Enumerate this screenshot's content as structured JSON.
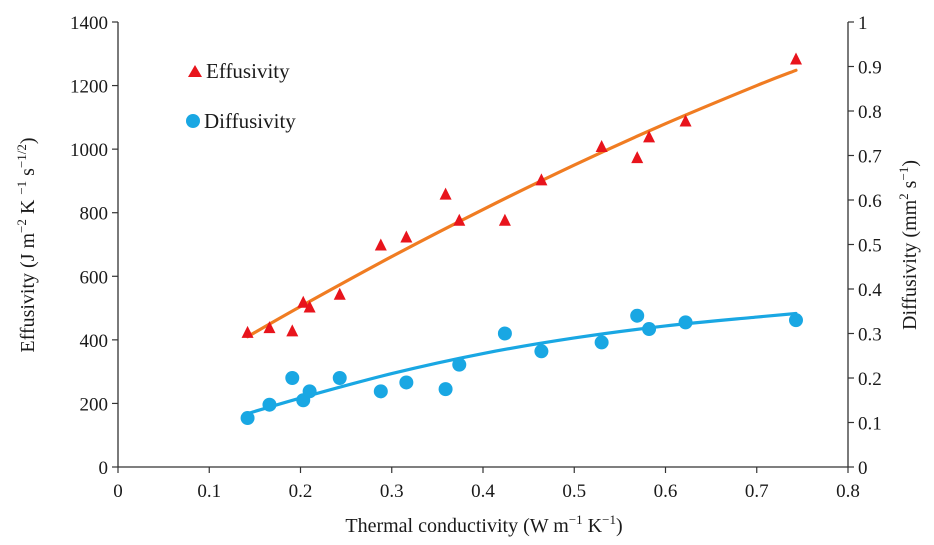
{
  "chart_data": {
    "type": "scatter",
    "xlabel": {
      "main": "Thermal conductivity (W m",
      "sup1": "−1",
      "mid": " K",
      "sup2": "−1",
      "end": ")"
    },
    "ylabel_left": {
      "main": "Effusivity (J m",
      "sup1": "−2",
      "mid1": " K ",
      "sup2": "−1",
      "mid2": " s",
      "sup3": "−1/2",
      "end": ")"
    },
    "ylabel_right": {
      "main": "Diffusivity  (mm",
      "sup1": "2",
      "mid": " s",
      "sup2": "−1",
      "end": ")"
    },
    "x_ticks": [
      "0",
      "0.1",
      "0.2",
      "0.3",
      "0.4",
      "0.5",
      "0.6",
      "0.7",
      "0.8"
    ],
    "y_left_ticks": [
      "0",
      "200",
      "400",
      "600",
      "800",
      "1000",
      "1200",
      "1400"
    ],
    "y_right_ticks": [
      "0",
      "0.1",
      "0.2",
      "0.3",
      "0.4",
      "0.5",
      "0.6",
      "0.7",
      "0.8",
      "0.9",
      "1"
    ],
    "xlim": [
      0,
      0.8
    ],
    "ylim_left": [
      0,
      1400
    ],
    "ylim_right": [
      0,
      1
    ],
    "grid": false,
    "legend_position": "top-left",
    "series": [
      {
        "name": "Effusivity",
        "axis": "left",
        "marker": "triangle",
        "color": "#e8141c",
        "x": [
          0.142,
          0.166,
          0.191,
          0.203,
          0.21,
          0.243,
          0.288,
          0.316,
          0.359,
          0.374,
          0.424,
          0.464,
          0.53,
          0.569,
          0.582,
          0.622,
          0.743
        ],
        "y": [
          425,
          440,
          430,
          520,
          505,
          545,
          700,
          725,
          860,
          778,
          778,
          905,
          1010,
          975,
          1040,
          1090,
          1285
        ]
      },
      {
        "name": "Diffusivity",
        "axis": "right",
        "marker": "circle",
        "color": "#19a7e3",
        "x": [
          0.142,
          0.166,
          0.191,
          0.203,
          0.21,
          0.243,
          0.288,
          0.316,
          0.359,
          0.374,
          0.424,
          0.464,
          0.53,
          0.569,
          0.582,
          0.622,
          0.743
        ],
        "y": [
          0.11,
          0.14,
          0.2,
          0.15,
          0.17,
          0.2,
          0.17,
          0.19,
          0.175,
          0.23,
          0.3,
          0.26,
          0.28,
          0.34,
          0.31,
          0.325,
          0.33
        ]
      }
    ],
    "trendlines": [
      {
        "series": "Effusivity",
        "axis": "left",
        "color": "#f07c22",
        "x": [
          0.142,
          0.2,
          0.3,
          0.4,
          0.5,
          0.6,
          0.7,
          0.743
        ],
        "y": [
          410,
          505,
          662,
          810,
          950,
          1080,
          1200,
          1248
        ]
      },
      {
        "series": "Diffusivity",
        "axis": "right",
        "color": "#19a7e3",
        "x": [
          0.142,
          0.2,
          0.3,
          0.4,
          0.5,
          0.6,
          0.7,
          0.743
        ],
        "y": [
          0.12,
          0.155,
          0.21,
          0.255,
          0.29,
          0.317,
          0.337,
          0.345
        ]
      }
    ]
  }
}
